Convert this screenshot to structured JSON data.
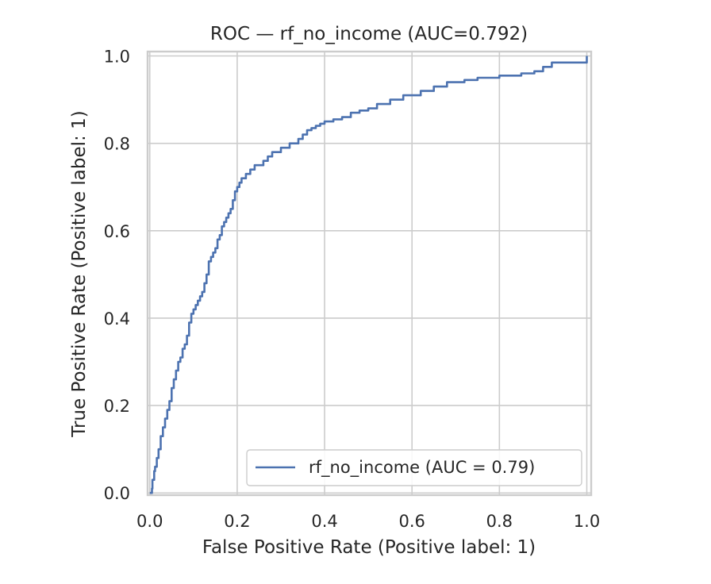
{
  "chart_data": {
    "type": "line",
    "title": "ROC — rf_no_income  (AUC=0.792)",
    "xlabel": "False Positive Rate (Positive label: 1)",
    "ylabel": "True Positive Rate (Positive label: 1)",
    "xlim": [
      -0.005,
      1.01
    ],
    "ylim": [
      -0.005,
      1.01
    ],
    "xticks": [
      "0.0",
      "0.2",
      "0.4",
      "0.6",
      "0.8",
      "1.0"
    ],
    "yticks": [
      "0.0",
      "0.2",
      "0.4",
      "0.6",
      "0.8",
      "1.0"
    ],
    "grid": true,
    "legend_position": "lower-right",
    "series": [
      {
        "name": "rf_no_income (AUC = 0.79)",
        "color": "#4c72b0",
        "x": [
          0.0,
          0.005,
          0.006,
          0.01,
          0.012,
          0.016,
          0.02,
          0.025,
          0.03,
          0.035,
          0.04,
          0.045,
          0.05,
          0.055,
          0.06,
          0.065,
          0.07,
          0.075,
          0.08,
          0.085,
          0.09,
          0.095,
          0.1,
          0.105,
          0.11,
          0.115,
          0.12,
          0.125,
          0.13,
          0.135,
          0.14,
          0.145,
          0.15,
          0.155,
          0.16,
          0.165,
          0.17,
          0.175,
          0.18,
          0.185,
          0.19,
          0.195,
          0.2,
          0.205,
          0.21,
          0.22,
          0.23,
          0.24,
          0.26,
          0.27,
          0.28,
          0.3,
          0.32,
          0.34,
          0.35,
          0.36,
          0.37,
          0.38,
          0.39,
          0.4,
          0.42,
          0.44,
          0.46,
          0.48,
          0.5,
          0.52,
          0.55,
          0.58,
          0.62,
          0.65,
          0.68,
          0.72,
          0.75,
          0.8,
          0.85,
          0.88,
          0.9,
          0.92,
          1.0
        ],
        "y": [
          0.0,
          0.01,
          0.03,
          0.05,
          0.06,
          0.08,
          0.1,
          0.13,
          0.15,
          0.17,
          0.19,
          0.21,
          0.24,
          0.26,
          0.28,
          0.3,
          0.31,
          0.33,
          0.34,
          0.36,
          0.39,
          0.41,
          0.42,
          0.43,
          0.44,
          0.45,
          0.46,
          0.48,
          0.5,
          0.53,
          0.54,
          0.55,
          0.56,
          0.58,
          0.59,
          0.61,
          0.62,
          0.63,
          0.64,
          0.65,
          0.67,
          0.69,
          0.7,
          0.71,
          0.72,
          0.73,
          0.74,
          0.75,
          0.76,
          0.77,
          0.78,
          0.79,
          0.8,
          0.81,
          0.82,
          0.83,
          0.835,
          0.84,
          0.845,
          0.85,
          0.855,
          0.86,
          0.87,
          0.875,
          0.88,
          0.89,
          0.9,
          0.91,
          0.92,
          0.93,
          0.94,
          0.945,
          0.95,
          0.955,
          0.96,
          0.965,
          0.975,
          0.985,
          1.0
        ]
      }
    ]
  }
}
